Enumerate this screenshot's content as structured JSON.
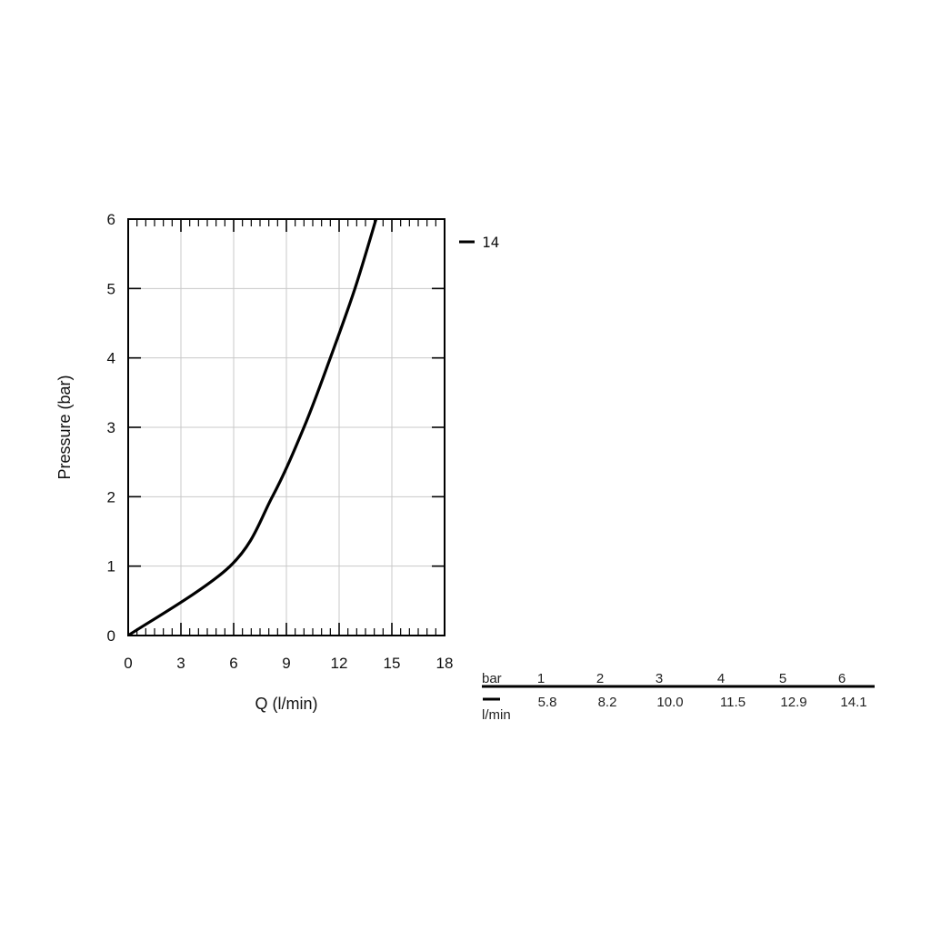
{
  "chart_data": {
    "type": "line",
    "xlabel": "Q (l/min)",
    "ylabel": "Pressure (bar)",
    "xlim": [
      0,
      18
    ],
    "ylim": [
      0,
      6
    ],
    "x_ticks": [
      "0",
      "3",
      "6",
      "9",
      "12",
      "15",
      "18"
    ],
    "y_ticks": [
      "0",
      "1",
      "2",
      "3",
      "4",
      "5",
      "6"
    ],
    "grid": true,
    "legend_position": "top-right",
    "series": [
      {
        "name": "14",
        "color": "#000000",
        "x": [
          0,
          5.8,
          8.2,
          10.0,
          11.5,
          12.9,
          14.1
        ],
        "y": [
          0,
          1,
          2,
          3,
          4,
          5,
          6
        ]
      }
    ]
  },
  "flow_table": {
    "header_label": "bar",
    "unit_label": "l/min",
    "pressures": [
      "1",
      "2",
      "3",
      "4",
      "5",
      "6"
    ],
    "flows": [
      "5.8",
      "8.2",
      "10.0",
      "11.5",
      "12.9",
      "14.1"
    ]
  }
}
